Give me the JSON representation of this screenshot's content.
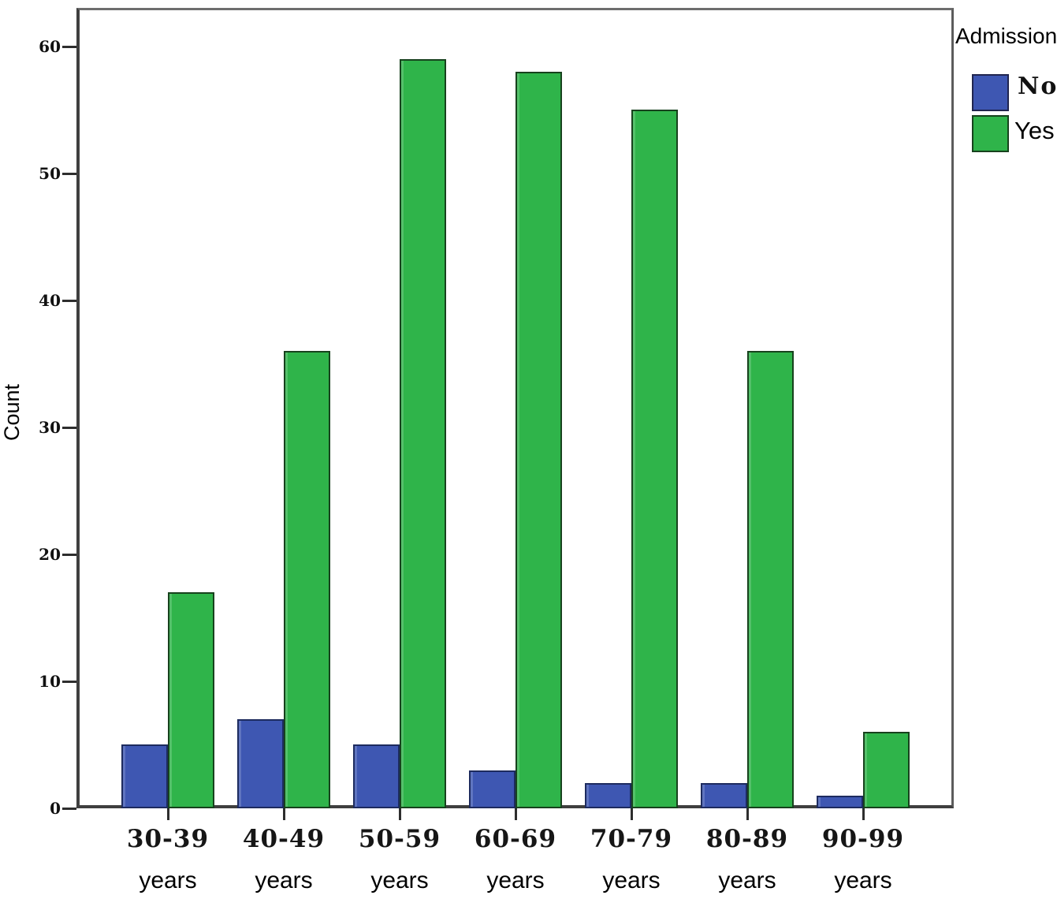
{
  "figure": {
    "y_axis_title": "Count",
    "legend": {
      "title": "Admission",
      "items": [
        {
          "label": "No",
          "color": "#3e57b2"
        },
        {
          "label": "Yes",
          "color": "#2fb44a"
        }
      ]
    }
  },
  "colors": {
    "bar_no_fill": "#3e57b2",
    "bar_no_border": "#1d2b5f",
    "bar_yes_fill": "#2fb44a",
    "bar_yes_border": "#17421d",
    "axis": "#3f3f3f",
    "tick": "#2e2e2e",
    "text": "#000000"
  },
  "chart_data": {
    "type": "bar",
    "title": "",
    "xlabel": "",
    "ylabel": "Count",
    "categories": [
      "30-39",
      "40-49",
      "50-59",
      "60-69",
      "70-79",
      "80-89",
      "90-99"
    ],
    "category_unit": "years",
    "series": [
      {
        "name": "No",
        "color": "#3e57b2",
        "values": [
          5,
          7,
          5,
          3,
          2,
          2,
          1
        ]
      },
      {
        "name": "Yes",
        "color": "#2fb44a",
        "values": [
          17,
          36,
          59,
          58,
          55,
          36,
          6
        ]
      }
    ],
    "yticks": [
      0,
      10,
      20,
      30,
      40,
      50,
      60
    ],
    "ylim": [
      0,
      63
    ],
    "grid": false,
    "legend_title": "Admission",
    "legend_position": "top-right-outside",
    "bar_group_layout": "side-by-side"
  }
}
